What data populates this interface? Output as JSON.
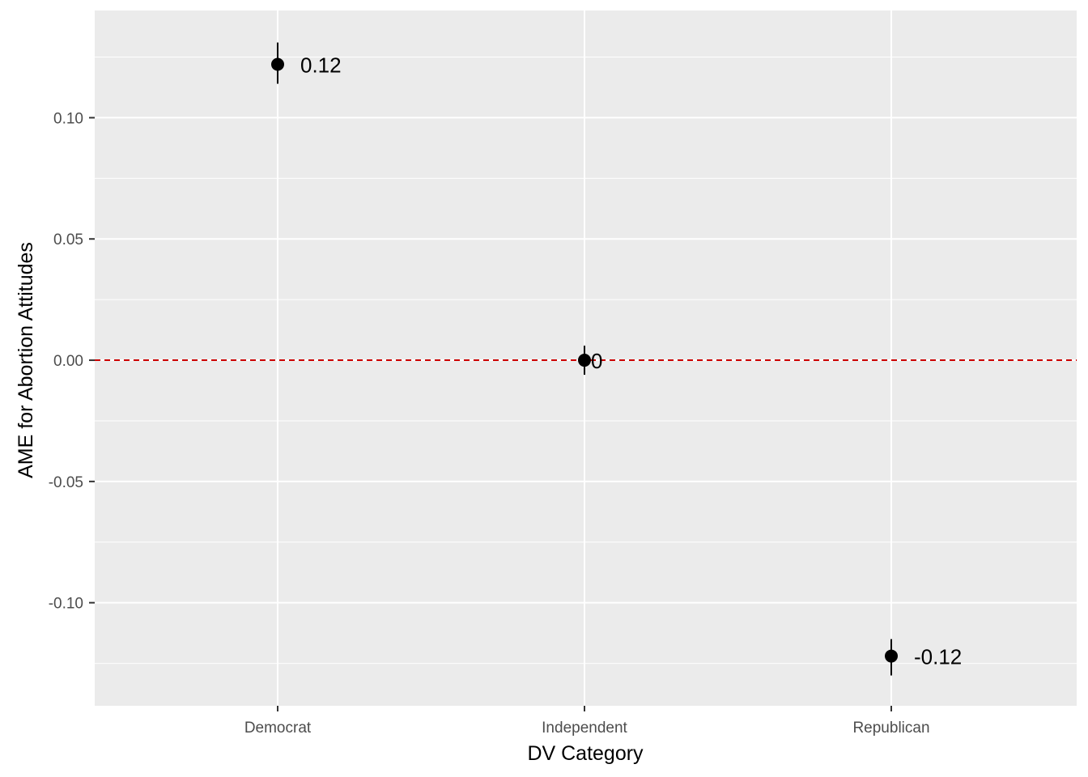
{
  "chart_data": {
    "type": "scatter",
    "title": "",
    "xlabel": "DV Category",
    "ylabel": "AME for Abortion Attitudes",
    "categories": [
      "Democrat",
      "Independent",
      "Republican"
    ],
    "points": [
      {
        "category": "Democrat",
        "value": 0.122,
        "lower": 0.114,
        "upper": 0.131,
        "label": "0.12"
      },
      {
        "category": "Independent",
        "value": 0.0,
        "lower": -0.006,
        "upper": 0.006,
        "label": "0"
      },
      {
        "category": "Republican",
        "value": -0.122,
        "lower": -0.13,
        "upper": -0.115,
        "label": "-0.12"
      }
    ],
    "yticks": [
      0.1,
      0.05,
      0.0,
      -0.05,
      -0.1
    ],
    "ytick_labels": [
      "0.10",
      "0.05",
      "0.00",
      "-0.05",
      "-0.10"
    ],
    "ylim": [
      -0.1425,
      0.1442
    ],
    "reference_line": {
      "y": 0,
      "style": "dashed",
      "color": "#cc0000"
    },
    "grid": true,
    "panel_color": "#ebebeb",
    "grid_color": "#ffffff",
    "point_color": "#000000"
  }
}
